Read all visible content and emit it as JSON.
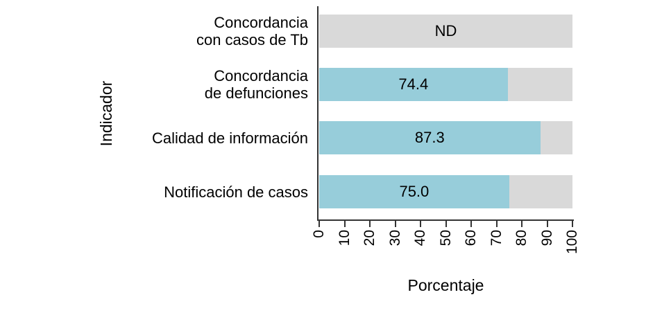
{
  "chart_data": {
    "type": "bar",
    "orientation": "horizontal",
    "xlabel": "Porcentaje",
    "ylabel": "Indicador",
    "xlim": [
      0,
      100
    ],
    "xticks": [
      0,
      10,
      20,
      30,
      40,
      50,
      60,
      70,
      80,
      90,
      100
    ],
    "grid": false,
    "legend_position": "none",
    "categories": [
      "Concordancia con casos de Tb",
      "Concordancia de defunciones",
      "Calidad de información",
      "Notificación de casos"
    ],
    "bars": [
      {
        "label_lines": [
          "Concordancia",
          "con casos de Tb"
        ],
        "value": null,
        "display": "ND"
      },
      {
        "label_lines": [
          "Concordancia",
          "de defunciones"
        ],
        "value": 74.4,
        "display": "74.4"
      },
      {
        "label_lines": [
          "Calidad de información"
        ],
        "value": 87.3,
        "display": "87.3"
      },
      {
        "label_lines": [
          "Notificación de casos"
        ],
        "value": 75.0,
        "display": "75.0"
      }
    ],
    "colors": {
      "fill": "#97cdda",
      "track": "#d9d9d9",
      "axis": "#333333",
      "text": "#000000"
    }
  }
}
